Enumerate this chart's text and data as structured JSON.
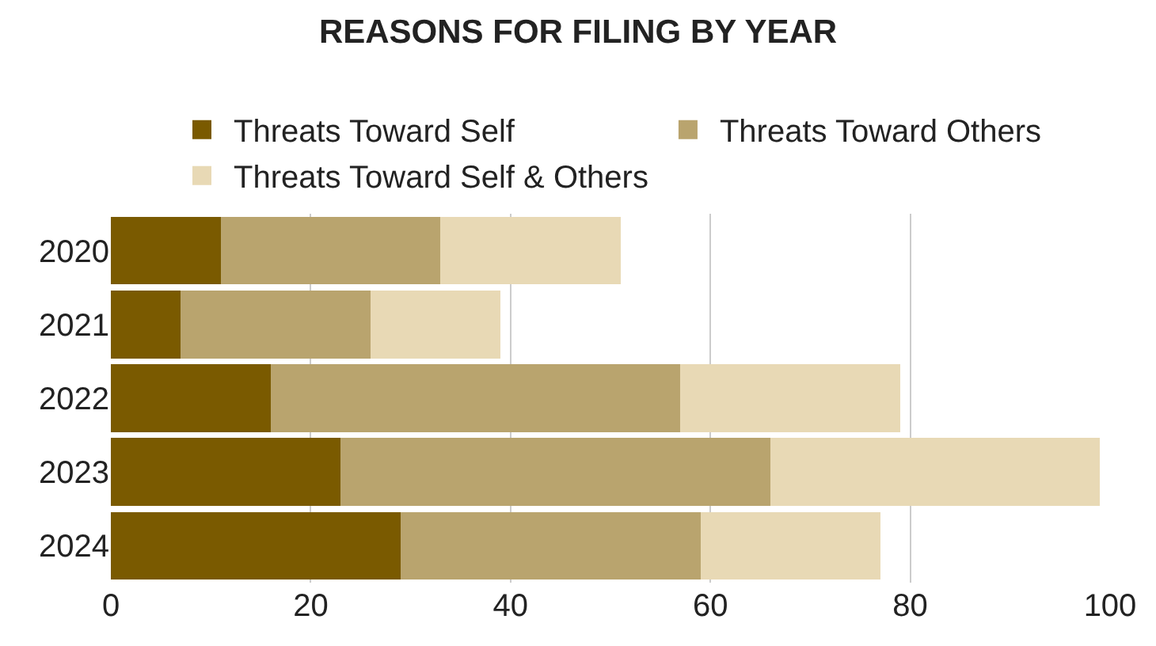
{
  "chart_data": {
    "type": "bar",
    "orientation": "horizontal",
    "stacked": true,
    "title": "REASONS FOR FILING BY YEAR",
    "categories": [
      "2020",
      "2021",
      "2022",
      "2023",
      "2024"
    ],
    "series": [
      {
        "name": "Threats Toward Self",
        "color": "#7a5a00",
        "values": [
          11,
          7,
          16,
          23,
          29
        ]
      },
      {
        "name": "Threats Toward Others",
        "color": "#b9a46e",
        "values": [
          22,
          19,
          41,
          43,
          30
        ]
      },
      {
        "name": "Threats Toward Self & Others",
        "color": "#e8d9b5",
        "values": [
          18,
          13,
          22,
          33,
          18
        ]
      }
    ],
    "xlim": [
      0,
      100
    ],
    "xticks": [
      0,
      20,
      40,
      60,
      80,
      100
    ],
    "grid": "x",
    "legend": "top"
  }
}
